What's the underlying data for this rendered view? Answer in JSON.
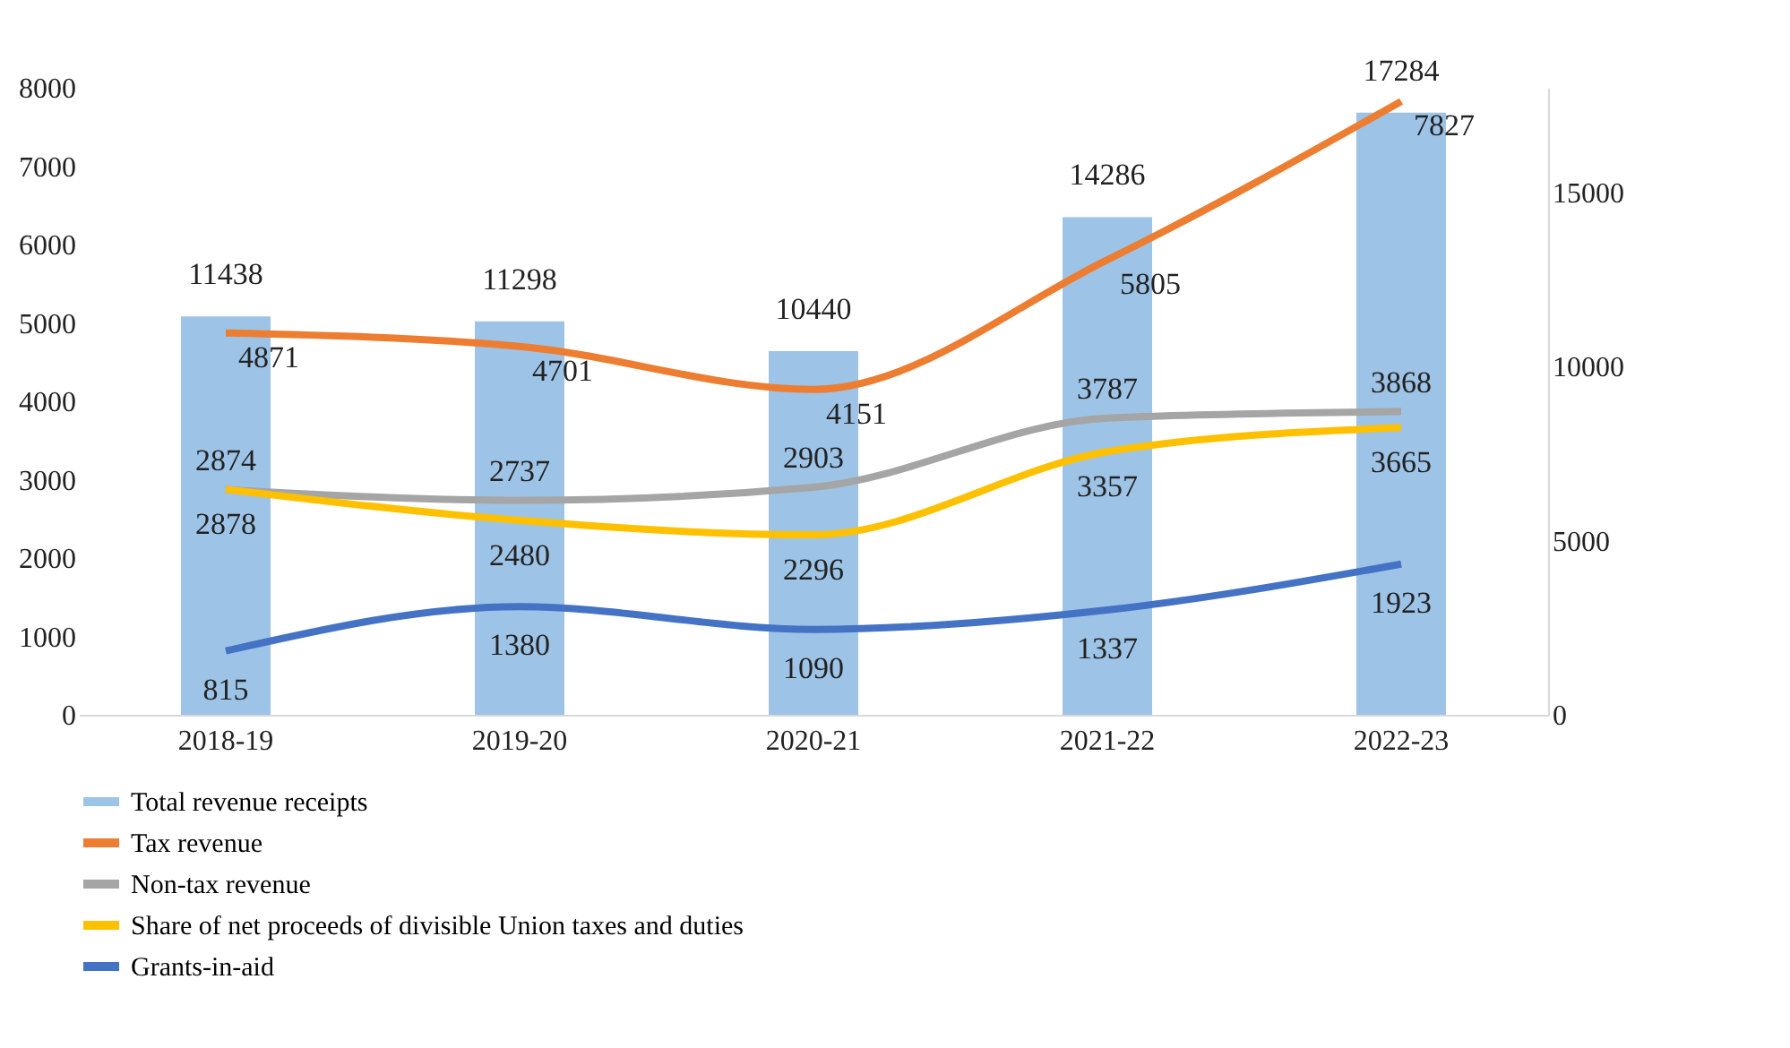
{
  "chart_data": {
    "type": "line",
    "categories": [
      "2018-19",
      "2019-20",
      "2020-21",
      "2021-22",
      "2022-23"
    ],
    "series": [
      {
        "name": "Total revenue receipts",
        "type": "bar",
        "axis": "y2",
        "color": "#9dc3e6",
        "values": [
          11438,
          11298,
          10440,
          14286,
          17284
        ]
      },
      {
        "name": "Tax revenue",
        "color": "#ed7d31",
        "values": [
          4871,
          4701,
          4151,
          5805,
          7827
        ]
      },
      {
        "name": "Non-tax revenue",
        "color": "#a5a5a5",
        "values": [
          2874,
          2737,
          2903,
          3787,
          3868
        ]
      },
      {
        "name": "Share of net proceeds of divisible Union taxes and duties",
        "color": "#ffc000",
        "values": [
          2878,
          2480,
          2296,
          3357,
          3665
        ]
      },
      {
        "name": "Grants-in-aid",
        "color": "#4472c4",
        "values": [
          815,
          1380,
          1090,
          1337,
          1923
        ]
      }
    ],
    "ylim": [
      0,
      8000
    ],
    "yticks": [
      0,
      1000,
      2000,
      3000,
      4000,
      5000,
      6000,
      7000,
      8000
    ],
    "y2lim": [
      0,
      18000
    ],
    "y2ticks": [
      0,
      5000,
      10000,
      15000
    ],
    "data_labels": true,
    "grid": false,
    "legend": "bottom",
    "marker": "none"
  }
}
